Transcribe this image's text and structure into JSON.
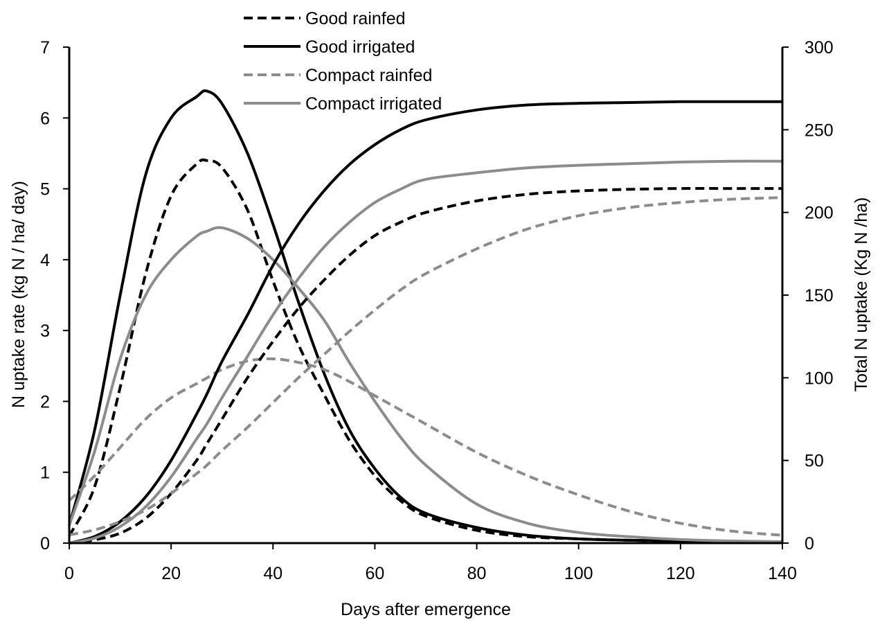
{
  "chart_data": {
    "type": "line",
    "xlabel": "Days after emergence",
    "ylabel_left": "N uptake rate (kg N / ha/ day)",
    "ylabel_right": "Total N uptake (Kg N /ha)",
    "xlim": [
      0,
      140
    ],
    "ylim_left": [
      0,
      7
    ],
    "ylim_right": [
      0,
      300
    ],
    "x_ticks": [
      0,
      20,
      40,
      60,
      80,
      100,
      120,
      140
    ],
    "y_ticks_left": [
      0,
      1,
      2,
      3,
      4,
      5,
      6,
      7
    ],
    "y_ticks_right": [
      0,
      50,
      100,
      150,
      200,
      250,
      300
    ],
    "grid": false,
    "legend_position": "top-center",
    "legend": [
      {
        "name": "Good rainfed",
        "color": "#000000",
        "dash": "dashed"
      },
      {
        "name": "Good irrigated",
        "color": "#000000",
        "dash": "solid"
      },
      {
        "name": "Compact rainfed",
        "color": "#8c8c8c",
        "dash": "dashed"
      },
      {
        "name": "Compact irrigated",
        "color": "#8c8c8c",
        "dash": "solid"
      }
    ],
    "x": [
      0,
      5,
      10,
      15,
      20,
      25,
      27,
      30,
      35,
      40,
      45,
      50,
      55,
      60,
      65,
      70,
      80,
      90,
      100,
      110,
      120,
      130,
      140
    ],
    "series": [
      {
        "name": "Good rainfed",
        "axis": "left",
        "color": "#000000",
        "dash": "dashed",
        "values": [
          0.1,
          0.8,
          2.2,
          3.8,
          4.9,
          5.35,
          5.4,
          5.3,
          4.7,
          3.7,
          2.8,
          2.1,
          1.45,
          0.95,
          0.6,
          0.38,
          0.18,
          0.09,
          0.06,
          0.04,
          0.03,
          0.02,
          0.02
        ]
      },
      {
        "name": "Good irrigated",
        "axis": "left",
        "color": "#000000",
        "dash": "solid",
        "values": [
          0.25,
          1.6,
          3.5,
          5.2,
          6.0,
          6.3,
          6.38,
          6.2,
          5.5,
          4.5,
          3.4,
          2.4,
          1.6,
          1.05,
          0.65,
          0.42,
          0.22,
          0.11,
          0.06,
          0.04,
          0.03,
          0.02,
          0.02
        ]
      },
      {
        "name": "Compact rainfed",
        "axis": "left",
        "color": "#8c8c8c",
        "dash": "dashed",
        "values": [
          0.6,
          0.95,
          1.35,
          1.75,
          2.05,
          2.25,
          2.33,
          2.45,
          2.57,
          2.6,
          2.55,
          2.45,
          2.28,
          2.08,
          1.88,
          1.68,
          1.28,
          0.95,
          0.68,
          0.45,
          0.28,
          0.17,
          0.11
        ]
      },
      {
        "name": "Compact irrigated",
        "axis": "left",
        "color": "#8c8c8c",
        "dash": "solid",
        "values": [
          0.25,
          1.3,
          2.6,
          3.5,
          4.0,
          4.33,
          4.4,
          4.45,
          4.3,
          4.0,
          3.6,
          3.15,
          2.55,
          2.0,
          1.5,
          1.1,
          0.55,
          0.28,
          0.15,
          0.09,
          0.05,
          0.03,
          0.02
        ]
      },
      {
        "name": "Good rainfed",
        "axis": "right",
        "color": "#000000",
        "dash": "dashed",
        "values": [
          0,
          2,
          6,
          15,
          30,
          50,
          60,
          75,
          100,
          122,
          142,
          159,
          174,
          186,
          194,
          200,
          207,
          211,
          213,
          214,
          214.5,
          214.5,
          214.5
        ]
      },
      {
        "name": "Good irrigated",
        "axis": "right",
        "color": "#000000",
        "dash": "solid",
        "values": [
          0,
          4,
          13,
          28,
          50,
          78,
          90,
          110,
          138,
          168,
          193,
          213,
          229,
          241,
          250,
          256,
          262,
          265,
          266,
          266.5,
          267,
          267,
          267
        ]
      },
      {
        "name": "Compact rainfed",
        "axis": "right",
        "color": "#8c8c8c",
        "dash": "dashed",
        "values": [
          5,
          8,
          13,
          20,
          30,
          42,
          47,
          56,
          70,
          85,
          100,
          114,
          128,
          141,
          153,
          163,
          178,
          190,
          198,
          203,
          206,
          208,
          209
        ]
      },
      {
        "name": "Compact irrigated",
        "axis": "right",
        "color": "#8c8c8c",
        "dash": "solid",
        "values": [
          0,
          3,
          10,
          22,
          40,
          63,
          72,
          88,
          113,
          138,
          160,
          179,
          194,
          206,
          214,
          220,
          224,
          227,
          228.5,
          229.5,
          230.5,
          231,
          231
        ]
      }
    ]
  }
}
